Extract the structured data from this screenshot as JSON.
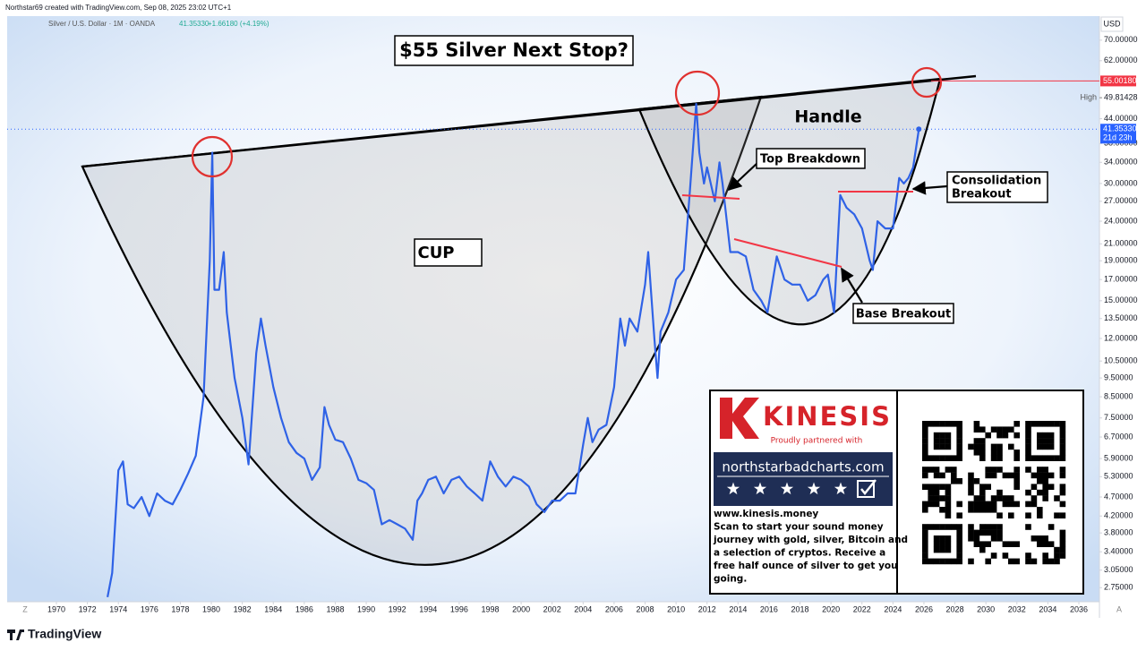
{
  "header": {
    "credit": "Northstar69 created with TradingView.com, Sep 08, 2025 23:02 UTC+1"
  },
  "chart_data": {
    "type": "line",
    "title": "$55 Silver Next Stop?",
    "symbol": "Silver / U.S. Dollar · 1M · OANDA",
    "legend_quote": "41.35330",
    "legend_change": "+1.66180 (+4.19%)",
    "currency": "USD",
    "log_scale": true,
    "grid": false,
    "x": [
      1973.3,
      1973.6,
      1974.0,
      1974.3,
      1974.6,
      1975.0,
      1975.5,
      1976.0,
      1976.5,
      1977.0,
      1977.5,
      1978.0,
      1978.5,
      1979.0,
      1979.5,
      1979.9,
      1980.06,
      1980.2,
      1980.5,
      1980.8,
      1981.0,
      1981.5,
      1982.0,
      1982.4,
      1982.9,
      1983.2,
      1983.5,
      1984.0,
      1984.5,
      1985.0,
      1985.5,
      1986.0,
      1986.5,
      1987.0,
      1987.3,
      1987.6,
      1988.0,
      1988.5,
      1989.0,
      1989.5,
      1990.0,
      1990.5,
      1991.0,
      1991.5,
      1992.0,
      1992.5,
      1993.0,
      1993.3,
      1993.6,
      1994.0,
      1994.5,
      1995.0,
      1995.5,
      1996.0,
      1996.5,
      1997.0,
      1997.5,
      1998.0,
      1998.5,
      1999.0,
      1999.5,
      2000.0,
      2000.5,
      2001.0,
      2001.5,
      2002.0,
      2002.5,
      2003.0,
      2003.5,
      2004.0,
      2004.3,
      2004.6,
      2005.0,
      2005.5,
      2006.0,
      2006.4,
      2006.7,
      2007.0,
      2007.5,
      2008.0,
      2008.2,
      2008.6,
      2008.8,
      2009.0,
      2009.5,
      2010.0,
      2010.5,
      2010.9,
      2011.3,
      2011.5,
      2011.8,
      2012.0,
      2012.5,
      2012.8,
      2013.0,
      2013.5,
      2014.0,
      2014.5,
      2015.0,
      2015.5,
      2015.9,
      2016.5,
      2017.0,
      2017.5,
      2018.0,
      2018.5,
      2019.0,
      2019.5,
      2019.8,
      2020.2,
      2020.6,
      2021.0,
      2021.5,
      2022.0,
      2022.5,
      2022.7,
      2023.0,
      2023.5,
      2024.0,
      2024.4,
      2024.7,
      2025.0,
      2025.3,
      2025.67
    ],
    "series": [
      {
        "name": "Silver / U.S. Dollar",
        "color": "#2f62e6",
        "values": [
          2.6,
          3.0,
          5.5,
          5.8,
          4.5,
          4.4,
          4.7,
          4.2,
          4.8,
          4.6,
          4.5,
          4.9,
          5.4,
          6.0,
          8.5,
          19,
          36,
          16,
          16,
          20,
          14,
          9.5,
          7.5,
          5.7,
          11,
          13.5,
          11.5,
          9,
          7.5,
          6.5,
          6.1,
          5.9,
          5.2,
          5.6,
          8.0,
          7.2,
          6.6,
          6.5,
          5.9,
          5.2,
          5.1,
          4.9,
          4.0,
          4.1,
          4.0,
          3.9,
          3.65,
          4.6,
          4.8,
          5.2,
          5.3,
          4.8,
          5.2,
          5.3,
          5.0,
          4.8,
          4.6,
          5.8,
          5.3,
          5.0,
          5.3,
          5.2,
          5.0,
          4.5,
          4.3,
          4.6,
          4.6,
          4.8,
          4.8,
          6.4,
          7.5,
          6.5,
          7.0,
          7.2,
          9.0,
          13.5,
          11.5,
          13.5,
          12.5,
          16.5,
          20,
          12,
          9.5,
          12.5,
          14,
          17,
          18,
          29,
          48,
          36,
          30,
          33,
          27,
          34,
          30,
          20,
          20,
          19.5,
          16,
          15,
          14,
          19.5,
          17,
          16.5,
          16.5,
          15,
          15.5,
          17,
          17.5,
          14,
          28,
          26,
          25,
          23,
          19,
          18,
          24,
          23,
          23,
          31,
          30,
          31,
          33,
          41.35
        ]
      }
    ],
    "xlim": [
      1966.82,
      2037.33
    ],
    "xticks": [
      1970,
      1972,
      1974,
      1976,
      1978,
      1980,
      1982,
      1984,
      1986,
      1988,
      1990,
      1992,
      1994,
      1996,
      1998,
      2000,
      2002,
      2004,
      2006,
      2008,
      2010,
      2012,
      2014,
      2016,
      2018,
      2020,
      2022,
      2024,
      2026,
      2028,
      2030,
      2032,
      2034,
      2036
    ],
    "ylim": [
      2.53,
      80.7
    ],
    "yticks": [
      {
        "value": 70,
        "label": "70.00000"
      },
      {
        "value": 62,
        "label": "62.00000"
      },
      {
        "value": 44,
        "label": "44.00000"
      },
      {
        "value": 38,
        "label": "38.00000"
      },
      {
        "value": 34,
        "label": "34.00000"
      },
      {
        "value": 30,
        "label": "30.00000"
      },
      {
        "value": 27,
        "label": "27.00000"
      },
      {
        "value": 24,
        "label": "24.00000"
      },
      {
        "value": 21,
        "label": "21.00000"
      },
      {
        "value": 19,
        "label": "19.00000"
      },
      {
        "value": 17,
        "label": "17.00000"
      },
      {
        "value": 15,
        "label": "15.00000"
      },
      {
        "value": 13.5,
        "label": "13.50000"
      },
      {
        "value": 12,
        "label": "12.00000"
      },
      {
        "value": 10.5,
        "label": "10.50000"
      },
      {
        "value": 9.5,
        "label": "9.50000"
      },
      {
        "value": 8.5,
        "label": "8.50000"
      },
      {
        "value": 7.5,
        "label": "7.50000"
      },
      {
        "value": 6.7,
        "label": "6.70000"
      },
      {
        "value": 5.9,
        "label": "5.90000"
      },
      {
        "value": 5.3,
        "label": "5.30000"
      },
      {
        "value": 4.7,
        "label": "4.70000"
      },
      {
        "value": 4.2,
        "label": "4.20000"
      },
      {
        "value": 3.8,
        "label": "3.80000"
      },
      {
        "value": 3.4,
        "label": "3.40000"
      },
      {
        "value": 3.05,
        "label": "3.05000"
      },
      {
        "value": 2.75,
        "label": "2.75000"
      }
    ],
    "target": {
      "value": 55.0018,
      "label": "55.00180",
      "color": "#f23645"
    },
    "high": {
      "name": "High",
      "value": 49.81428,
      "label": "49.81428"
    },
    "last_price": {
      "value": 41.3533,
      "label": "41.35330",
      "countdown": "21d 23h",
      "color": "#2962ff"
    },
    "annotations": {
      "cup": "CUP",
      "handle": "Handle",
      "top_breakdown": "Top Breakdown",
      "consolidation": [
        "Consolidation",
        "Breakout"
      ],
      "base_breakout": "Base Breakout"
    },
    "axis_buttons": {
      "left": "Z",
      "right": "A"
    }
  },
  "ad": {
    "brand": "KINESIS",
    "tagline": "Proudly partnered with",
    "site": "northstarbadcharts.com",
    "lines": [
      "www.kinesis.money",
      "Scan to start your sound money",
      "journey with gold, silver, Bitcoin and",
      "a selection of cryptos. Receive a",
      "free half ounce of silver to get you",
      "going."
    ]
  },
  "footer": {
    "brand": "TradingView"
  }
}
